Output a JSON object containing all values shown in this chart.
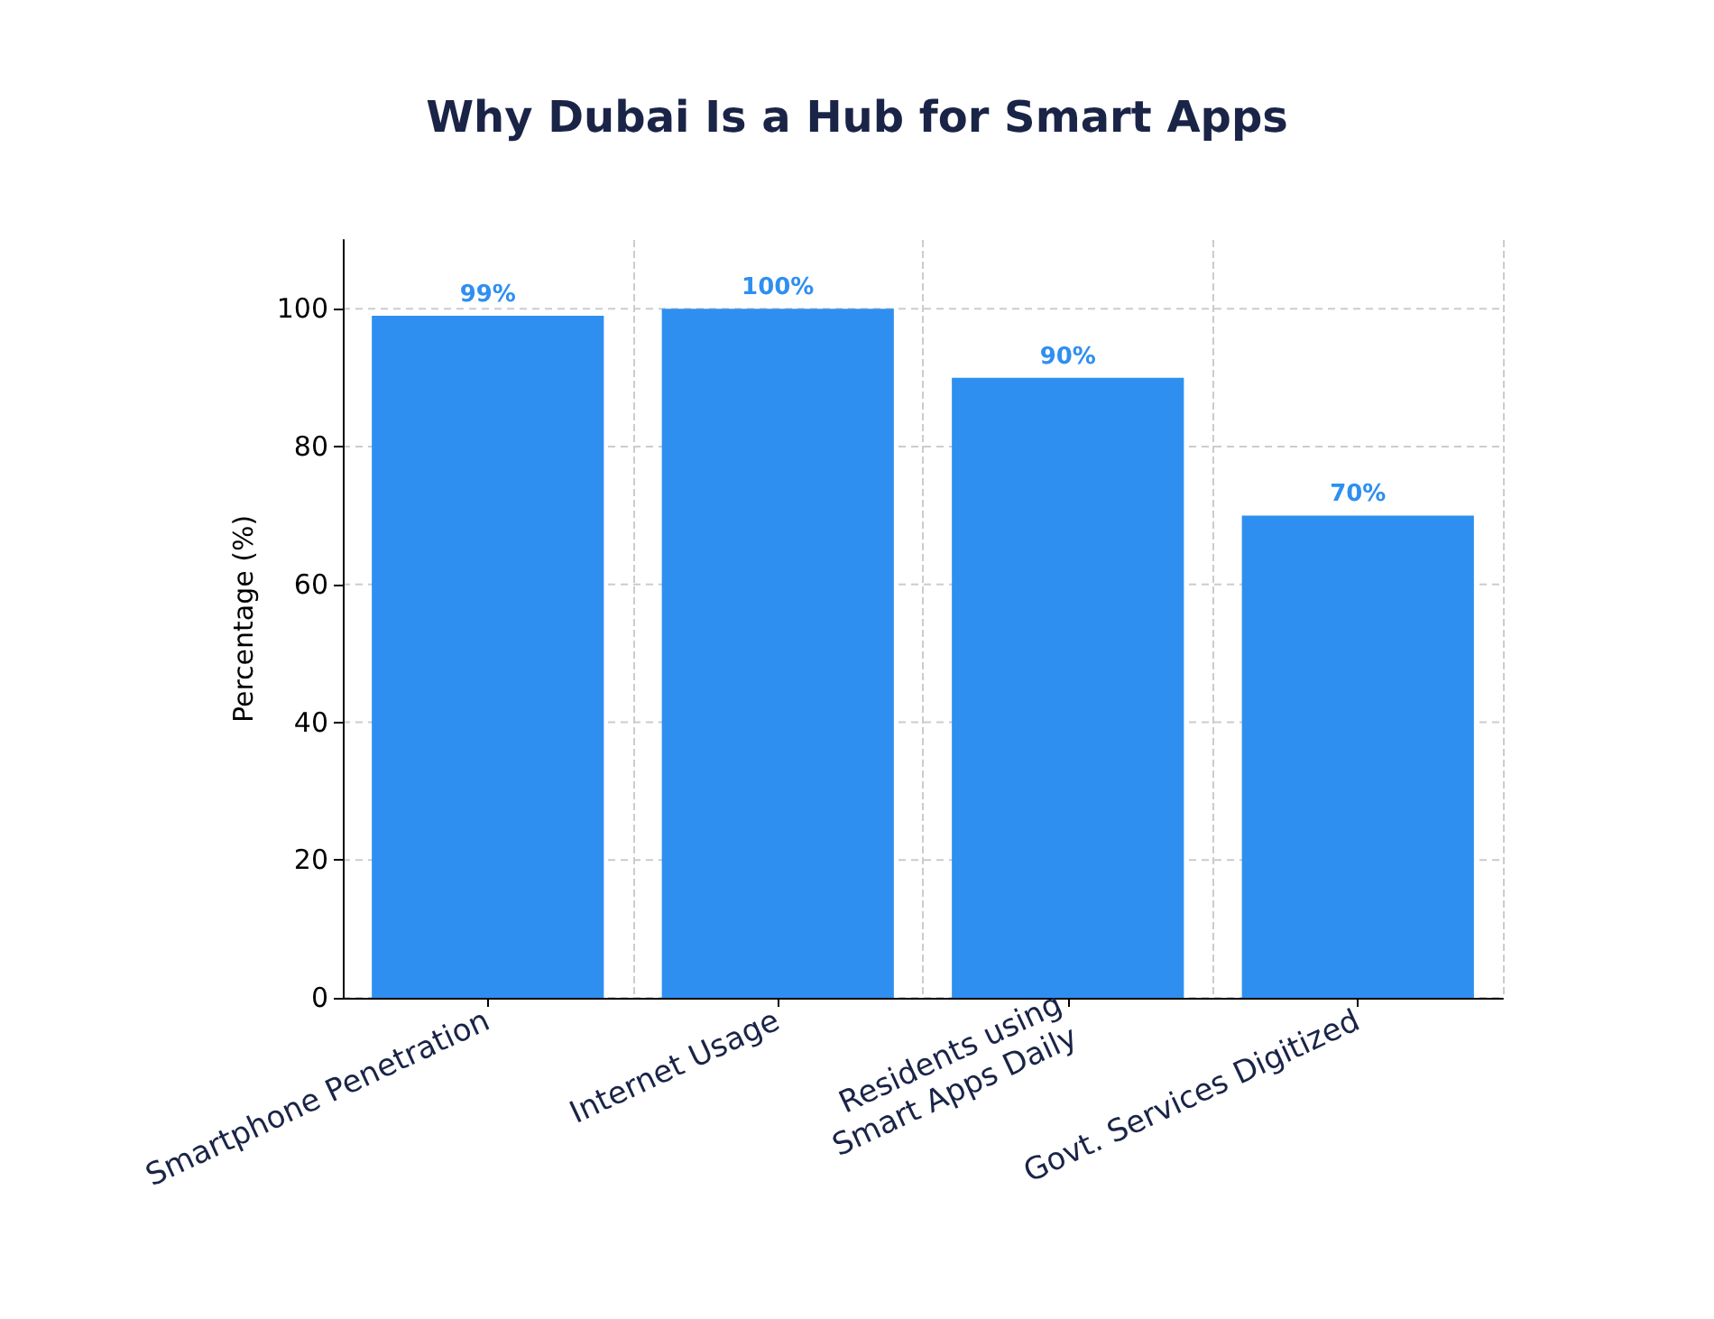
{
  "chart_data": {
    "type": "bar",
    "title": "Why Dubai Is a Hub for Smart Apps",
    "ylabel": "Percentage (%)",
    "categories": [
      "Smartphone Penetration",
      "Internet Usage",
      "Residents using\nSmart Apps Daily",
      "Govt. Services Digitized"
    ],
    "values": [
      99,
      100,
      90,
      70
    ],
    "color": "#2f8ff0",
    "value_labels": [
      "99%",
      "100%",
      "90%",
      "70%"
    ],
    "ylim": [
      0,
      110
    ],
    "yticks": [
      0,
      20,
      40,
      60,
      80,
      100
    ],
    "grid": true
  }
}
